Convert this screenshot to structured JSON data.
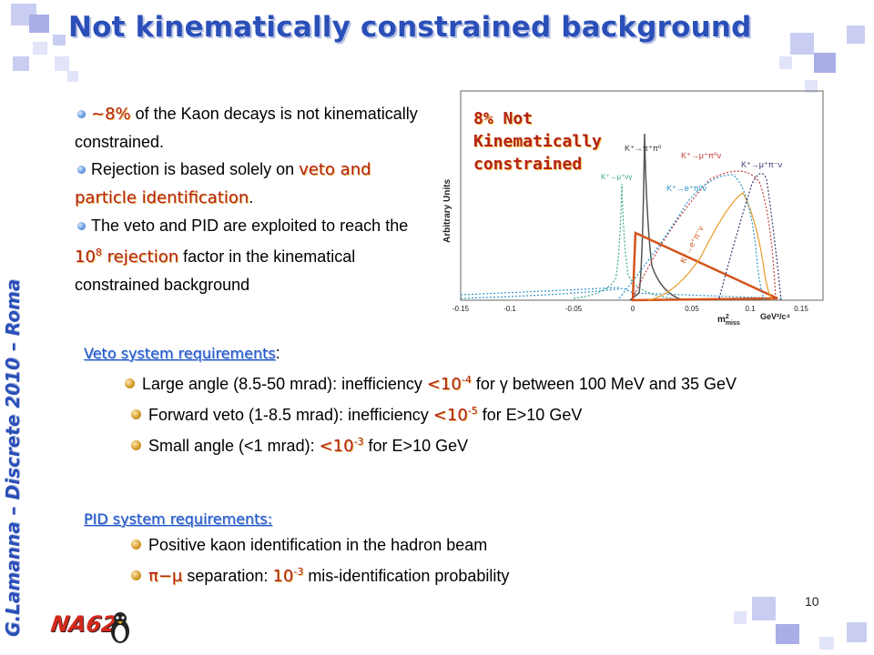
{
  "slide": {
    "title": "Not kinematically constrained background",
    "author": "G.Lamanna – Discrete 2010 – Roma",
    "page_number": "10",
    "logo_text": "NA62"
  },
  "intro": {
    "b1_hl": "~8%",
    "b1_rest": " of the Kaon decays is not kinematically constrained.",
    "b2_pre": "Rejection is based solely on ",
    "b2_hl": "veto and particle identification",
    "b2_post": ".",
    "b3_pre": "The veto and PID are exploited to reach the ",
    "b3_hl_base": "10",
    "b3_hl_exp": "8",
    "b3_hl_word": " rejection",
    "b3_post": " factor in the kinematical constrained background"
  },
  "figure": {
    "overlay_label": "8% Not Kinematically constrained",
    "y_label": "Arbitrary Units",
    "x_tick_labels": [
      "-0.15",
      "-0.1",
      "-0.05",
      "0",
      "0.05",
      "0.1",
      "0.15"
    ],
    "x_label_main": "m",
    "x_label_sup": "2",
    "x_label_sub": "miss",
    "x_unit": "GeV²/c⁴",
    "curve_labels": {
      "k_pi_pi0": "K⁺→π⁺π⁰",
      "k_mu_pi_nu": "K⁺→μ⁺π⁰ν",
      "k_mu_pi_pi_nu": "K⁺→μ⁺π⁻ν",
      "k_mu_nu_gamma": "K⁺→μ⁺νγ",
      "k_e_pi_nu": "K⁺→e⁺π⁰ν",
      "k_e_pi_pi": "K⁺→e⁺π⁻ν"
    },
    "colors": {
      "pi_pi0": "#555555",
      "mu_pi_nu": "#c43c3c",
      "mu_pi_pi_nu": "#3a3a6e",
      "mu_nu_gamma": "#3aa58a",
      "e_pi_nu": "#2f93c8",
      "e_pi_pi": "#e89a2a",
      "orange_triangle": "#d2541a"
    }
  },
  "veto": {
    "heading": "Veto system requirements",
    "heading_suffix": ":",
    "i1_pre": "Large angle (8.5-50 mrad): inefficiency ",
    "i1_hl": "<10",
    "i1_exp": "-4",
    "i1_post": " for γ between 100 MeV and 35 GeV",
    "i2_pre": "Forward veto (1-8.5 mrad): inefficiency ",
    "i2_hl": "<10",
    "i2_exp": "-5",
    "i2_post": "  for E>10 GeV",
    "i3_pre": "Small angle (<1 mrad): ",
    "i3_hl": "<10",
    "i3_exp": "-3",
    "i3_post": " for E>10 GeV"
  },
  "pid": {
    "heading": "PID system requirements:",
    "i1": "Positive kaon identification in the hadron beam",
    "i2_sym": "π−μ",
    "i2_mid": " separation:  ",
    "i2_hl": "10",
    "i2_exp": "-3",
    "i2_post": "  mis-identification probability"
  }
}
